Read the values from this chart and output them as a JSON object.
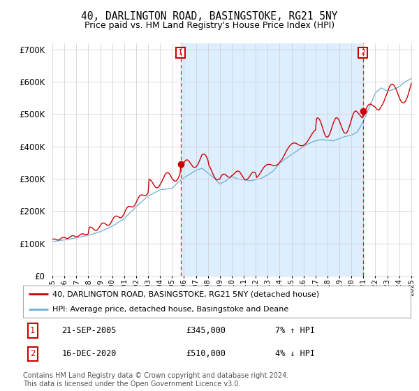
{
  "title": "40, DARLINGTON ROAD, BASINGSTOKE, RG21 5NY",
  "subtitle": "Price paid vs. HM Land Registry's House Price Index (HPI)",
  "ylim": [
    0,
    720000
  ],
  "yticks": [
    0,
    100000,
    200000,
    300000,
    400000,
    500000,
    600000,
    700000
  ],
  "hpi_color": "#6aaed6",
  "price_color": "#cc0000",
  "shade_color": "#ddeeff",
  "sale1_year": 2005.72,
  "sale1_price": 345000,
  "sale2_year": 2020.96,
  "sale2_price": 510000,
  "legend_line1": "40, DARLINGTON ROAD, BASINGSTOKE, RG21 5NY (detached house)",
  "legend_line2": "HPI: Average price, detached house, Basingstoke and Deane",
  "note1_num": "1",
  "note1_date": "21-SEP-2005",
  "note1_price": "£345,000",
  "note1_hpi": "7% ↑ HPI",
  "note2_num": "2",
  "note2_date": "16-DEC-2020",
  "note2_price": "£510,000",
  "note2_hpi": "4% ↓ HPI",
  "footer": "Contains HM Land Registry data © Crown copyright and database right 2024.\nThis data is licensed under the Open Government Licence v3.0.",
  "background_color": "#ffffff",
  "grid_color": "#cccccc",
  "plot_bg": "#f8f8f8"
}
